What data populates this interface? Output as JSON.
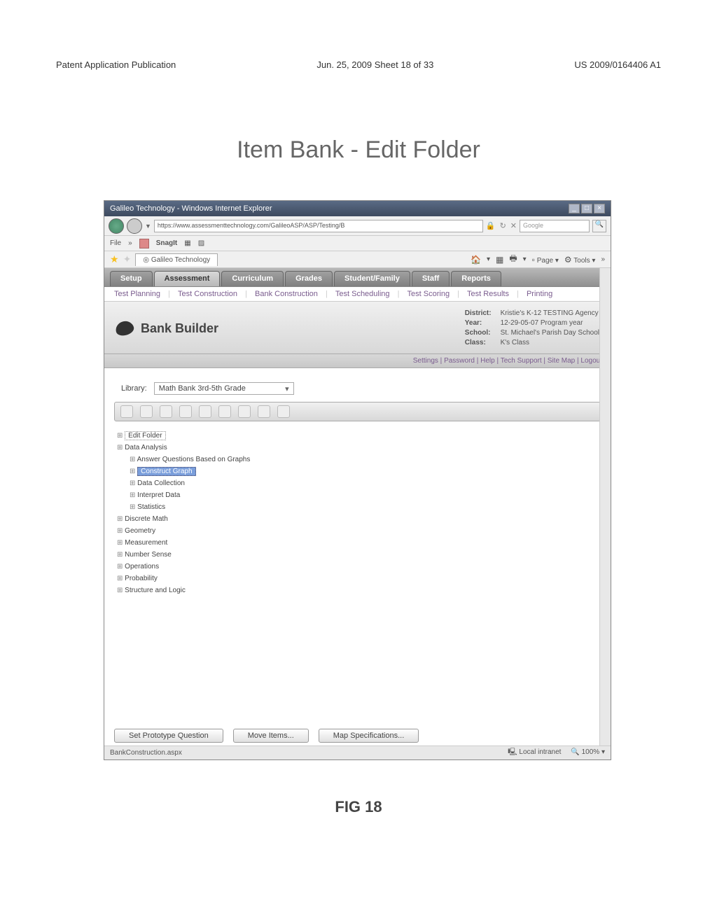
{
  "pageHeader": {
    "left": "Patent Application Publication",
    "center": "Jun. 25, 2009  Sheet 18 of 33",
    "right": "US 2009/0164406 A1"
  },
  "mainTitle": "Item Bank - Edit Folder",
  "figCaption": "FIG 18",
  "browser": {
    "title": "Galileo Technology - Windows Internet Explorer",
    "url": "https://www.assessmenttechnology.com/GalileoASP/ASP/Testing/B",
    "searchPlaceholder": "Google",
    "fileMenu": "File",
    "snagit": "SnagIt",
    "tabLabel": "Galileo Technology",
    "pageMenu": "Page",
    "toolsMenu": "Tools",
    "statusLeft": "BankConstruction.aspx",
    "statusZone": "Local intranet",
    "statusZoom": "100%"
  },
  "mainTabs": [
    "Setup",
    "Assessment",
    "Curriculum",
    "Grades",
    "Student/Family",
    "Staff",
    "Reports"
  ],
  "activeMainTab": 1,
  "subTabs": [
    "Test Planning",
    "Test Construction",
    "Bank Construction",
    "Test Scheduling",
    "Test Scoring",
    "Test Results",
    "Printing"
  ],
  "banner": {
    "title": "Bank Builder",
    "district": "Kristie's K-12 TESTING Agency",
    "year": "12-29-05-07 Program year",
    "school": "St. Michael's Parish Day School",
    "class": "K's Class"
  },
  "utilLinks": [
    "Settings",
    "Password",
    "Help",
    "Tech Support",
    "Site Map",
    "Logout"
  ],
  "library": {
    "label": "Library:",
    "selected": "Math Bank 3rd-5th Grade"
  },
  "toolbarIcons": [
    "add",
    "delete",
    "refresh",
    "copy",
    "paste",
    "cut",
    "up",
    "down",
    "config"
  ],
  "tree": [
    {
      "label": "Edit Folder",
      "outline": true,
      "children": []
    },
    {
      "label": "Data Analysis",
      "children": [
        {
          "label": "Answer Questions Based on Graphs"
        },
        {
          "label": "Construct Graph",
          "selected": true
        },
        {
          "label": "Data Collection"
        },
        {
          "label": "Interpret Data"
        },
        {
          "label": "Statistics"
        }
      ]
    },
    {
      "label": "Discrete Math"
    },
    {
      "label": "Geometry"
    },
    {
      "label": "Measurement"
    },
    {
      "label": "Number Sense"
    },
    {
      "label": "Operations"
    },
    {
      "label": "Probability"
    },
    {
      "label": "Structure and Logic"
    }
  ],
  "bottomButtons": [
    "Set Prototype Question",
    "Move Items...",
    "Map Specifications..."
  ]
}
